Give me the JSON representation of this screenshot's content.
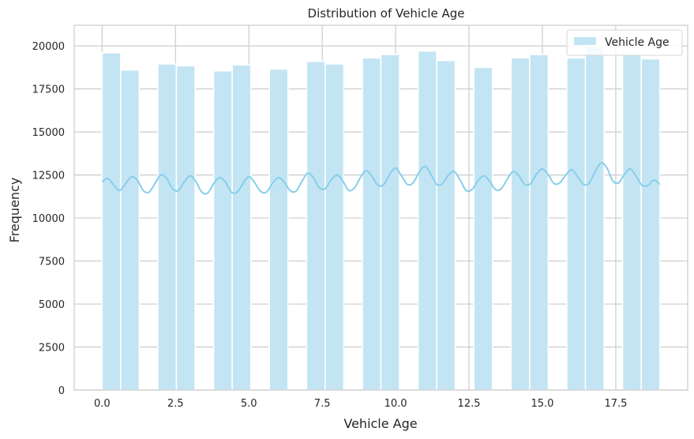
{
  "chart_data": {
    "type": "bar",
    "title": "Distribution of Vehicle Age",
    "xlabel": "Vehicle Age",
    "ylabel": "Frequency",
    "xlim": [
      -0.95,
      19.95
    ],
    "ylim": [
      0,
      21200
    ],
    "xticks": [
      0.0,
      2.5,
      5.0,
      7.5,
      10.0,
      12.5,
      15.0,
      17.5
    ],
    "xtick_labels": [
      "0.0",
      "2.5",
      "5.0",
      "7.5",
      "10.0",
      "12.5",
      "15.0",
      "17.5"
    ],
    "yticks": [
      0,
      2500,
      5000,
      7500,
      10000,
      12500,
      15000,
      17500,
      20000
    ],
    "ytick_labels": [
      "0",
      "2500",
      "5000",
      "7500",
      "10000",
      "12500",
      "15000",
      "17500",
      "20000"
    ],
    "grid": true,
    "legend": {
      "position": "top-right",
      "entries": [
        "Vehicle Age"
      ]
    },
    "bin_width": 0.633,
    "bins": [
      {
        "start": 0.0,
        "value": 19600
      },
      {
        "start": 0.633,
        "value": 18600
      },
      {
        "start": 1.267,
        "value": 0
      },
      {
        "start": 1.9,
        "value": 18950
      },
      {
        "start": 2.533,
        "value": 18850
      },
      {
        "start": 3.167,
        "value": 0
      },
      {
        "start": 3.8,
        "value": 18550
      },
      {
        "start": 4.433,
        "value": 18900
      },
      {
        "start": 5.067,
        "value": 0
      },
      {
        "start": 5.7,
        "value": 18650
      },
      {
        "start": 6.333,
        "value": 0
      },
      {
        "start": 6.967,
        "value": 19100
      },
      {
        "start": 7.6,
        "value": 18950
      },
      {
        "start": 8.233,
        "value": 0
      },
      {
        "start": 8.867,
        "value": 19300
      },
      {
        "start": 9.5,
        "value": 19500
      },
      {
        "start": 10.133,
        "value": 0
      },
      {
        "start": 10.767,
        "value": 19700
      },
      {
        "start": 11.4,
        "value": 19150
      },
      {
        "start": 12.033,
        "value": 0
      },
      {
        "start": 12.667,
        "value": 18750
      },
      {
        "start": 13.3,
        "value": 0
      },
      {
        "start": 13.933,
        "value": 19300
      },
      {
        "start": 14.567,
        "value": 19500
      },
      {
        "start": 15.2,
        "value": 0
      },
      {
        "start": 15.833,
        "value": 19300
      },
      {
        "start": 16.467,
        "value": 20000
      },
      {
        "start": 17.1,
        "value": 0
      },
      {
        "start": 17.733,
        "value": 19500
      },
      {
        "start": 18.367,
        "value": 19250
      }
    ],
    "kde_line": {
      "x": [
        0.0,
        0.2,
        0.4,
        0.6,
        0.8,
        1.0,
        1.2,
        1.4,
        1.6,
        1.8,
        2.0,
        2.2,
        2.4,
        2.6,
        2.8,
        3.0,
        3.2,
        3.4,
        3.6,
        3.8,
        4.0,
        4.2,
        4.4,
        4.6,
        4.8,
        5.0,
        5.2,
        5.4,
        5.6,
        5.8,
        6.0,
        6.2,
        6.4,
        6.6,
        6.8,
        7.0,
        7.2,
        7.4,
        7.6,
        7.8,
        8.0,
        8.2,
        8.4,
        8.6,
        8.8,
        9.0,
        9.2,
        9.4,
        9.6,
        9.8,
        10.0,
        10.2,
        10.4,
        10.6,
        10.8,
        11.0,
        11.2,
        11.4,
        11.6,
        11.8,
        12.0,
        12.2,
        12.4,
        12.6,
        12.8,
        13.0,
        13.2,
        13.4,
        13.6,
        13.8,
        14.0,
        14.2,
        14.4,
        14.6,
        14.8,
        15.0,
        15.2,
        15.4,
        15.6,
        15.8,
        16.0,
        16.2,
        16.4,
        16.6,
        16.8,
        17.0,
        17.2,
        17.4,
        17.6,
        17.8,
        18.0,
        18.2,
        18.4,
        18.6,
        18.8,
        19.0
      ],
      "y": [
        12100,
        12300,
        11900,
        11600,
        12000,
        12400,
        12200,
        11600,
        11500,
        12000,
        12500,
        12300,
        11700,
        11600,
        12100,
        12450,
        12100,
        11500,
        11450,
        12000,
        12350,
        12100,
        11500,
        11500,
        12000,
        12400,
        12050,
        11550,
        11500,
        12000,
        12350,
        12100,
        11600,
        11550,
        12100,
        12600,
        12350,
        11750,
        11700,
        12200,
        12500,
        12150,
        11600,
        11750,
        12350,
        12750,
        12400,
        11900,
        11950,
        12550,
        12900,
        12450,
        11950,
        12050,
        12650,
        13000,
        12550,
        11950,
        12000,
        12500,
        12700,
        12200,
        11600,
        11650,
        12150,
        12450,
        12150,
        11650,
        11700,
        12250,
        12700,
        12450,
        11950,
        12000,
        12550,
        12850,
        12500,
        12000,
        12050,
        12500,
        12800,
        12400,
        11950,
        12050,
        12700,
        13200,
        12900,
        12150,
        12050,
        12550,
        12850,
        12400,
        11900,
        11900,
        12200,
        11950
      ]
    }
  }
}
